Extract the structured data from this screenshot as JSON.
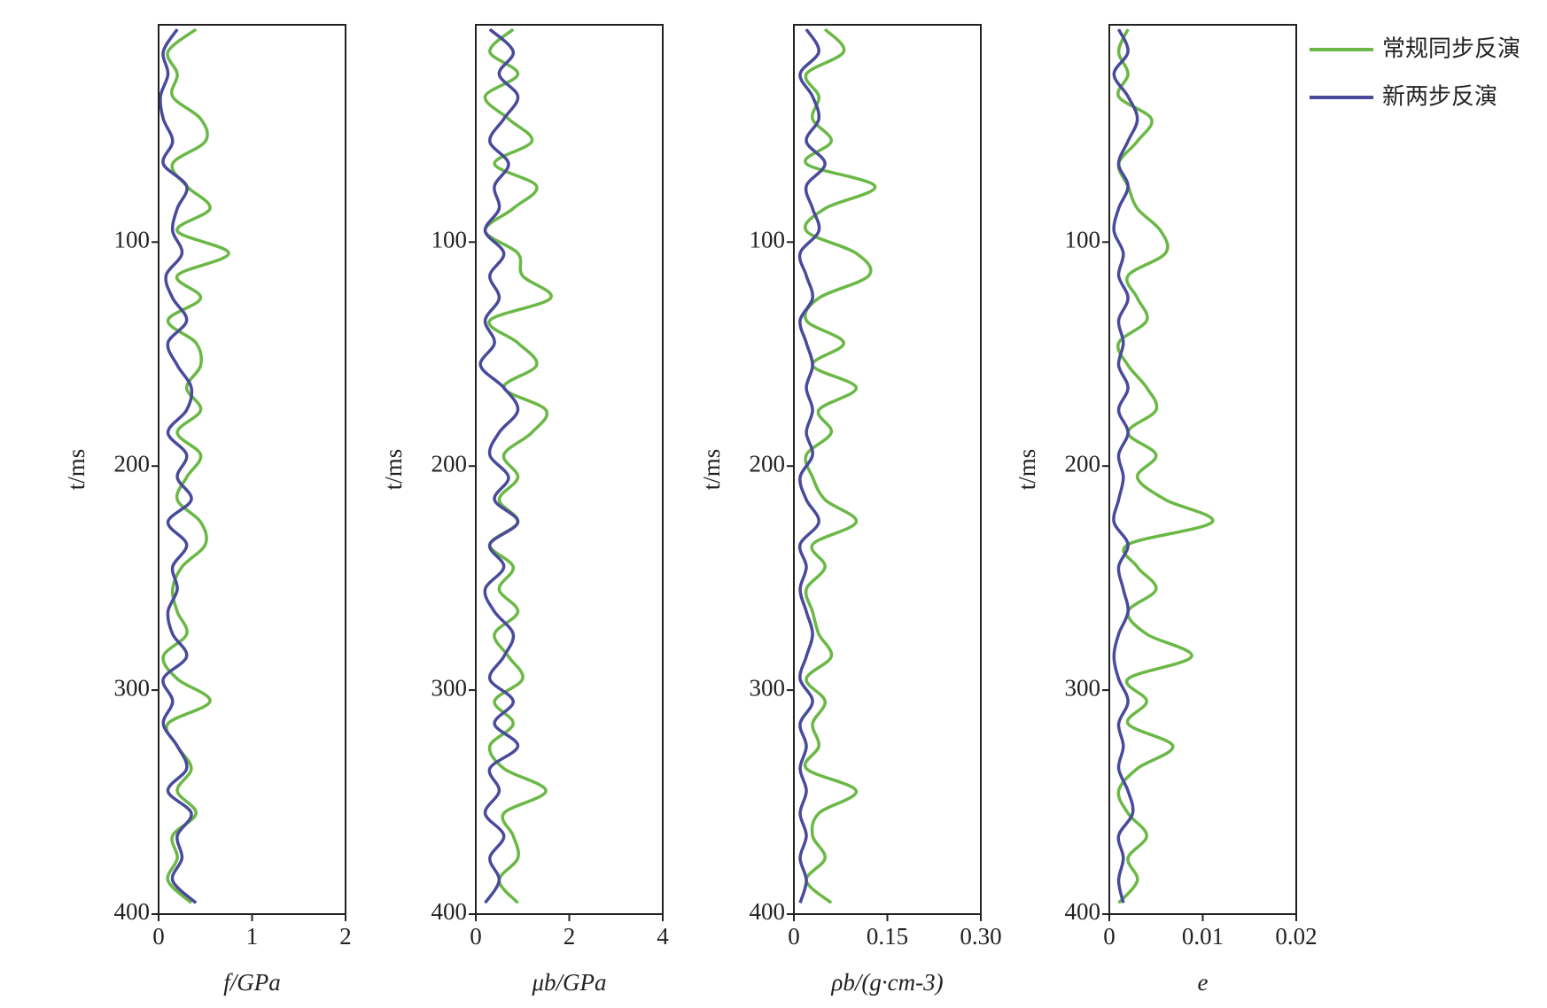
{
  "chart_data": [
    {
      "type": "line",
      "ylabel": "t/ms",
      "xlabel": "f/GPa",
      "xlim": [
        0,
        2
      ],
      "xticks": [
        0,
        1,
        2
      ],
      "ylim": [
        3,
        400
      ],
      "yticks": [
        100,
        200,
        300,
        400
      ],
      "y_inverted": true,
      "y": [
        5,
        15,
        25,
        35,
        45,
        55,
        65,
        75,
        85,
        95,
        105,
        115,
        125,
        135,
        145,
        155,
        165,
        175,
        185,
        195,
        205,
        215,
        225,
        235,
        245,
        255,
        265,
        275,
        285,
        295,
        305,
        315,
        325,
        335,
        345,
        355,
        365,
        375,
        385,
        395
      ],
      "series": [
        {
          "name": "常规同步反演",
          "color": "#6ab845",
          "values": [
            0.4,
            0.1,
            0.2,
            0.15,
            0.45,
            0.5,
            0.15,
            0.3,
            0.55,
            0.2,
            0.75,
            0.2,
            0.45,
            0.1,
            0.4,
            0.45,
            0.3,
            0.45,
            0.2,
            0.45,
            0.3,
            0.2,
            0.45,
            0.5,
            0.25,
            0.15,
            0.2,
            0.3,
            0.05,
            0.2,
            0.55,
            0.1,
            0.2,
            0.35,
            0.2,
            0.4,
            0.15,
            0.2,
            0.1,
            0.35
          ]
        },
        {
          "name": "新两步反演",
          "color": "#4a4a9c",
          "values": [
            0.2,
            0.05,
            0.1,
            0.02,
            0.05,
            0.15,
            0.05,
            0.3,
            0.2,
            0.15,
            0.25,
            0.08,
            0.15,
            0.3,
            0.1,
            0.2,
            0.35,
            0.3,
            0.1,
            0.3,
            0.2,
            0.35,
            0.1,
            0.3,
            0.15,
            0.2,
            0.1,
            0.15,
            0.3,
            0.05,
            0.15,
            0.05,
            0.2,
            0.3,
            0.1,
            0.35,
            0.2,
            0.25,
            0.15,
            0.4
          ]
        }
      ]
    },
    {
      "type": "line",
      "ylabel": "t/ms",
      "xlabel": "μb/GPa",
      "xlim": [
        0,
        4
      ],
      "xticks": [
        0,
        2,
        4
      ],
      "ylim": [
        3,
        400
      ],
      "yticks": [
        100,
        200,
        300,
        400
      ],
      "y_inverted": true,
      "y": [
        5,
        15,
        25,
        35,
        45,
        55,
        65,
        75,
        85,
        95,
        105,
        115,
        125,
        135,
        145,
        155,
        165,
        175,
        185,
        195,
        205,
        215,
        225,
        235,
        245,
        255,
        265,
        275,
        285,
        295,
        305,
        315,
        325,
        335,
        345,
        355,
        365,
        375,
        385,
        395
      ],
      "series": [
        {
          "name": "常规同步反演",
          "color": "#6ab845",
          "values": [
            0.8,
            0.3,
            0.9,
            0.2,
            0.7,
            1.2,
            0.4,
            1.3,
            0.8,
            0.2,
            0.9,
            1.0,
            1.6,
            0.3,
            0.9,
            1.3,
            0.6,
            1.5,
            1.2,
            0.6,
            0.9,
            0.5,
            0.9,
            0.3,
            0.8,
            0.5,
            0.9,
            0.4,
            0.7,
            1.0,
            0.4,
            0.8,
            0.3,
            0.6,
            1.5,
            0.6,
            0.8,
            0.9,
            0.5,
            0.9
          ]
        },
        {
          "name": "新两步反演",
          "color": "#4a4a9c",
          "values": [
            0.3,
            0.8,
            0.5,
            0.9,
            0.6,
            0.3,
            0.7,
            0.4,
            0.5,
            0.2,
            0.6,
            0.3,
            0.5,
            0.2,
            0.4,
            0.1,
            0.6,
            0.9,
            0.5,
            0.3,
            0.7,
            0.4,
            0.9,
            0.3,
            0.6,
            0.2,
            0.4,
            0.8,
            0.6,
            0.3,
            0.8,
            0.4,
            0.9,
            0.3,
            0.5,
            0.2,
            0.6,
            0.3,
            0.5,
            0.2
          ]
        }
      ]
    },
    {
      "type": "line",
      "ylabel": "t/ms",
      "xlabel": "ρb/(g·cm-3)",
      "xlim": [
        0,
        0.3
      ],
      "xticks": [
        0,
        0.15,
        {
          "value": 0.3,
          "label": "0.30"
        }
      ],
      "ylim": [
        3,
        400
      ],
      "yticks": [
        100,
        200,
        300,
        400
      ],
      "y_inverted": true,
      "y": [
        5,
        15,
        25,
        35,
        45,
        55,
        65,
        75,
        85,
        95,
        105,
        115,
        125,
        135,
        145,
        155,
        165,
        175,
        185,
        195,
        205,
        215,
        225,
        235,
        245,
        255,
        265,
        275,
        285,
        295,
        305,
        315,
        325,
        335,
        345,
        355,
        365,
        375,
        385,
        395
      ],
      "series": [
        {
          "name": "常规同步反演",
          "color": "#6ab845",
          "values": [
            0.05,
            0.08,
            0.02,
            0.04,
            0.03,
            0.06,
            0.02,
            0.13,
            0.05,
            0.02,
            0.1,
            0.12,
            0.04,
            0.02,
            0.08,
            0.03,
            0.1,
            0.04,
            0.06,
            0.02,
            0.03,
            0.05,
            0.1,
            0.03,
            0.05,
            0.02,
            0.03,
            0.04,
            0.06,
            0.02,
            0.05,
            0.03,
            0.04,
            0.02,
            0.1,
            0.04,
            0.03,
            0.05,
            0.02,
            0.06
          ]
        },
        {
          "name": "新两步反演",
          "color": "#4a4a9c",
          "values": [
            0.02,
            0.04,
            0.01,
            0.03,
            0.04,
            0.02,
            0.05,
            0.02,
            0.03,
            0.04,
            0.01,
            0.02,
            0.03,
            0.01,
            0.02,
            0.03,
            0.02,
            0.03,
            0.02,
            0.03,
            0.01,
            0.02,
            0.04,
            0.01,
            0.02,
            0.01,
            0.02,
            0.03,
            0.02,
            0.01,
            0.03,
            0.01,
            0.02,
            0.01,
            0.02,
            0.01,
            0.02,
            0.01,
            0.02,
            0.01
          ]
        }
      ]
    },
    {
      "type": "line",
      "ylabel": "t/ms",
      "xlabel": "e",
      "xlim": [
        0,
        0.02
      ],
      "xticks": [
        0,
        0.01,
        0.02
      ],
      "ylim": [
        3,
        400
      ],
      "yticks": [
        100,
        200,
        300,
        400
      ],
      "y_inverted": true,
      "legend": "right",
      "y": [
        5,
        15,
        25,
        35,
        45,
        55,
        65,
        75,
        85,
        95,
        105,
        115,
        125,
        135,
        145,
        155,
        165,
        175,
        185,
        195,
        205,
        215,
        225,
        235,
        245,
        255,
        265,
        275,
        285,
        295,
        305,
        315,
        325,
        335,
        345,
        355,
        365,
        375,
        385,
        395
      ],
      "series": [
        {
          "name": "常规同步反演",
          "color": "#6ab845",
          "values": [
            0.002,
            0.001,
            0.002,
            0.001,
            0.0045,
            0.003,
            0.001,
            0.002,
            0.003,
            0.0055,
            0.006,
            0.002,
            0.003,
            0.004,
            0.001,
            0.002,
            0.004,
            0.005,
            0.002,
            0.005,
            0.003,
            0.006,
            0.011,
            0.002,
            0.003,
            0.005,
            0.002,
            0.004,
            0.0088,
            0.002,
            0.004,
            0.002,
            0.0068,
            0.003,
            0.001,
            0.002,
            0.004,
            0.002,
            0.003,
            0.001
          ]
        },
        {
          "name": "新两步反演",
          "color": "#4a4a9c",
          "values": [
            0.001,
            0.002,
            0.0005,
            0.002,
            0.003,
            0.002,
            0.001,
            0.002,
            0.001,
            0.0005,
            0.0015,
            0.001,
            0.002,
            0.001,
            0.0015,
            0.001,
            0.002,
            0.001,
            0.002,
            0.001,
            0.0015,
            0.001,
            0.0005,
            0.002,
            0.001,
            0.0015,
            0.002,
            0.001,
            0.0005,
            0.001,
            0.002,
            0.001,
            0.0015,
            0.001,
            0.002,
            0.0025,
            0.001,
            0.0015,
            0.001,
            0.0015
          ]
        }
      ]
    }
  ]
}
